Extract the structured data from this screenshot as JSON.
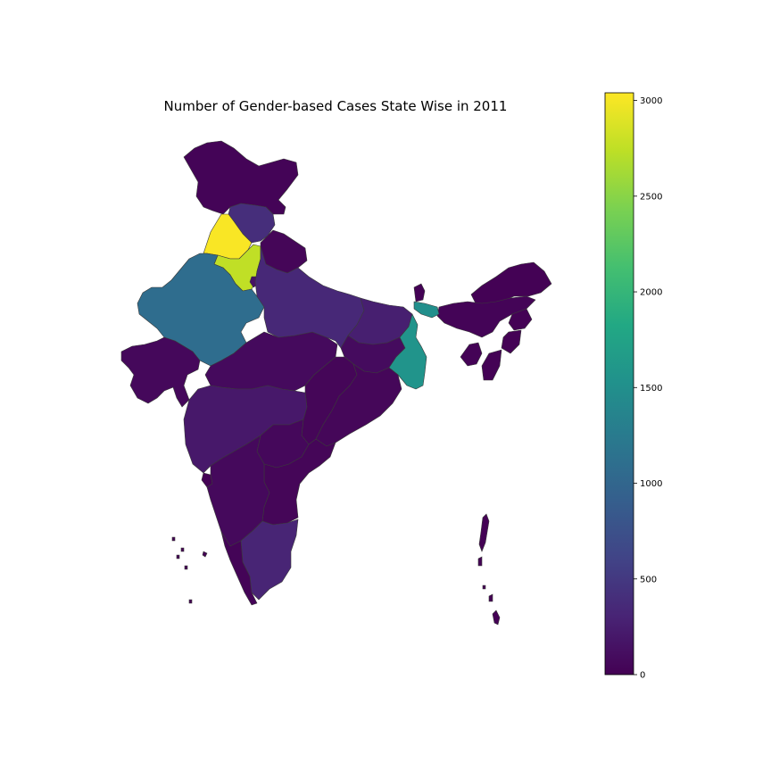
{
  "chart_data": {
    "type": "choropleth",
    "title": "Number of Gender-based Cases State Wise in 2011",
    "colormap": "viridis",
    "colorbar": {
      "min": 0,
      "max": 3040,
      "ticks": [
        0,
        500,
        1000,
        1500,
        2000,
        2500,
        3000
      ]
    },
    "regions": [
      {
        "name": "Punjab",
        "value": 3020
      },
      {
        "name": "Haryana",
        "value": 2750
      },
      {
        "name": "Rajasthan",
        "value": 1080
      },
      {
        "name": "West Bengal",
        "value": 1560
      },
      {
        "name": "Meghalaya",
        "value": 1500
      },
      {
        "name": "Himachal Pradesh",
        "value": 400
      },
      {
        "name": "Uttar Pradesh",
        "value": 340
      },
      {
        "name": "Tamil Nadu",
        "value": 310
      },
      {
        "name": "Bihar",
        "value": 260
      },
      {
        "name": "Maharashtra",
        "value": 200
      },
      {
        "name": "Delhi",
        "value": 150
      },
      {
        "name": "Jammu and Kashmir",
        "value": 30
      },
      {
        "name": "Uttarakhand",
        "value": 40
      },
      {
        "name": "Gujarat",
        "value": 60
      },
      {
        "name": "Madhya Pradesh",
        "value": 80
      },
      {
        "name": "Chhattisgarh",
        "value": 40
      },
      {
        "name": "Jharkhand",
        "value": 90
      },
      {
        "name": "Odisha",
        "value": 50
      },
      {
        "name": "Telangana",
        "value": 60
      },
      {
        "name": "Andhra Pradesh",
        "value": 40
      },
      {
        "name": "Karnataka",
        "value": 70
      },
      {
        "name": "Kerala",
        "value": 30
      },
      {
        "name": "Goa",
        "value": 10
      },
      {
        "name": "Arunachal Pradesh",
        "value": 10
      },
      {
        "name": "Assam",
        "value": 30
      },
      {
        "name": "Nagaland",
        "value": 5
      },
      {
        "name": "Manipur",
        "value": 5
      },
      {
        "name": "Mizoram",
        "value": 5
      },
      {
        "name": "Tripura",
        "value": 20
      },
      {
        "name": "Sikkim",
        "value": 5
      },
      {
        "name": "Andaman and Nicobar Islands",
        "value": 5
      },
      {
        "name": "Lakshadweep",
        "value": 0
      }
    ]
  }
}
